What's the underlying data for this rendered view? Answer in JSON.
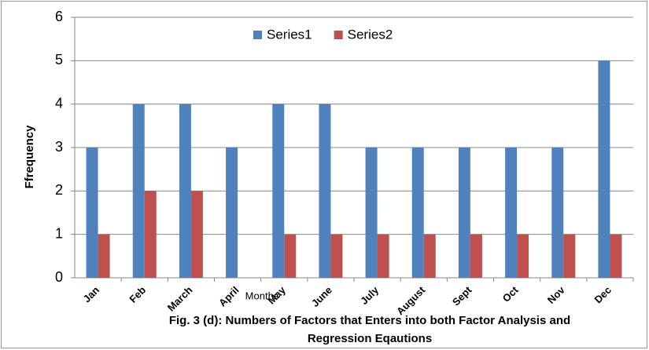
{
  "chart_data": {
    "type": "bar",
    "y_label": "Ffrequency",
    "x_label": "Months",
    "caption": [
      "Fig. 3 (d):  Numbers of Factors that Enters into both Factor Analysis and",
      "Regression Eqautions"
    ],
    "categories": [
      "Jan",
      "Feb",
      "March",
      "April",
      "May",
      "June",
      "July",
      "August",
      "Sept",
      "Oct",
      "Nov",
      "Dec"
    ],
    "series": [
      {
        "name": "Series1",
        "color": "#4f81bd",
        "values": [
          3,
          4,
          4,
          3,
          4,
          4,
          3,
          3,
          3,
          3,
          3,
          5
        ]
      },
      {
        "name": "Series2",
        "color": "#c0504d",
        "values": [
          1,
          2,
          2,
          0,
          1,
          1,
          1,
          1,
          1,
          1,
          1,
          1
        ]
      }
    ],
    "ylim": [
      0,
      6
    ],
    "yticks": [
      0,
      1,
      2,
      3,
      4,
      5,
      6
    ],
    "grid": true,
    "legend": "top"
  }
}
